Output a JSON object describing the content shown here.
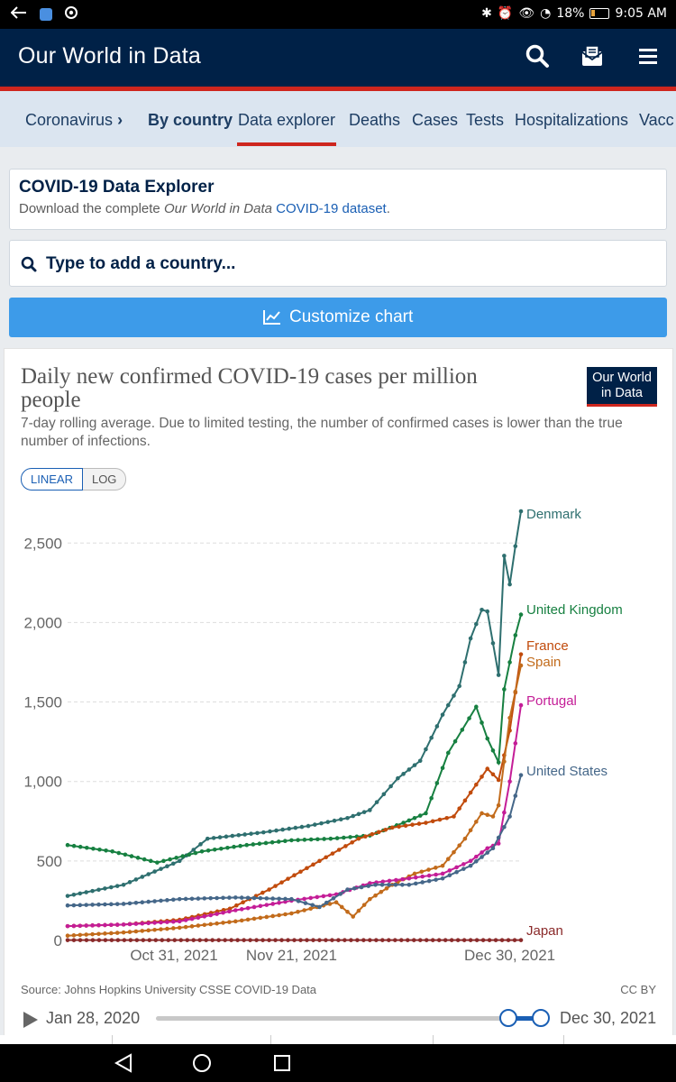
{
  "status_bar": {
    "battery": "18%",
    "time": "9:05 AM"
  },
  "header": {
    "title": "Our World in Data"
  },
  "nav": {
    "root": "Coronavirus",
    "tabs": [
      {
        "label": "By country",
        "active": false
      },
      {
        "label": "Data explorer",
        "active": true
      },
      {
        "label": "Deaths"
      },
      {
        "label": "Cases"
      },
      {
        "label": "Tests"
      },
      {
        "label": "Hospitalizations"
      },
      {
        "label": "Vacc"
      }
    ]
  },
  "explorer_card": {
    "title": "COVID-19 Data Explorer",
    "desc_prefix": "Download the complete ",
    "desc_em": "Our World in Data",
    "desc_link": "COVID-19 dataset",
    "desc_suffix": "."
  },
  "search": {
    "placeholder": "Type to add a country..."
  },
  "customize_button": {
    "label": "Customize chart"
  },
  "chart": {
    "title": "Daily new confirmed COVID-19 cases per million people",
    "subtitle": "7-day rolling average. Due to limited testing, the number of confirmed cases is lower than the true number of infections.",
    "logo_line1": "Our World",
    "logo_line2": "in Data",
    "scale_linear": "LINEAR",
    "scale_log": "LOG",
    "source": "Source: Johns Hopkins University CSSE COVID-19 Data",
    "license": "CC BY"
  },
  "timeline": {
    "start": "Jan 28, 2020",
    "end": "Dec 30, 2021"
  },
  "chart_data": {
    "type": "line",
    "x_start": "2021-10-12",
    "x_end": "2021-12-30",
    "x_ticks": [
      "Oct 31, 2021",
      "Nov 21, 2021",
      "Dec 30, 2021"
    ],
    "y_ticks": [
      "0",
      "500",
      "1,000",
      "1,500",
      "2,000",
      "2,500"
    ],
    "ylim": [
      0,
      2700
    ],
    "grid": true,
    "legend": "end-of-line labels",
    "series": [
      {
        "name": "Denmark",
        "color": "#2e6f6f",
        "points": [
          [
            "10-12",
            280
          ],
          [
            "10-22",
            350
          ],
          [
            "11-01",
            500
          ],
          [
            "11-06",
            640
          ],
          [
            "11-16",
            680
          ],
          [
            "11-24",
            720
          ],
          [
            "12-01",
            770
          ],
          [
            "12-05",
            820
          ],
          [
            "12-10",
            1020
          ],
          [
            "12-14",
            1130
          ],
          [
            "12-18",
            1420
          ],
          [
            "12-21",
            1600
          ],
          [
            "12-23",
            1900
          ],
          [
            "12-25",
            2080
          ],
          [
            "12-26",
            2070
          ],
          [
            "12-27",
            1870
          ],
          [
            "12-28",
            1670
          ],
          [
            "12-29",
            2420
          ],
          [
            "12-30",
            2240
          ],
          [
            "12-31",
            2480
          ],
          [
            "01-01",
            2700
          ]
        ]
      },
      {
        "name": "United Kingdom",
        "color": "#178041",
        "points": [
          [
            "10-12",
            600
          ],
          [
            "10-20",
            560
          ],
          [
            "10-28",
            490
          ],
          [
            "11-05",
            560
          ],
          [
            "11-13",
            600
          ],
          [
            "11-21",
            630
          ],
          [
            "11-28",
            640
          ],
          [
            "12-05",
            660
          ],
          [
            "12-11",
            740
          ],
          [
            "12-15",
            800
          ],
          [
            "12-19",
            1180
          ],
          [
            "12-24",
            1470
          ],
          [
            "12-26",
            1270
          ],
          [
            "12-28",
            1120
          ],
          [
            "12-29",
            1580
          ],
          [
            "12-31",
            1920
          ],
          [
            "01-01",
            2050
          ]
        ]
      },
      {
        "name": "France",
        "color": "#c14b0c",
        "points": [
          [
            "10-12",
            90
          ],
          [
            "10-22",
            100
          ],
          [
            "11-01",
            130
          ],
          [
            "11-10",
            200
          ],
          [
            "11-17",
            320
          ],
          [
            "11-26",
            500
          ],
          [
            "12-03",
            640
          ],
          [
            "12-09",
            710
          ],
          [
            "12-15",
            740
          ],
          [
            "12-20",
            780
          ],
          [
            "12-24",
            980
          ],
          [
            "12-26",
            1080
          ],
          [
            "12-28",
            1010
          ],
          [
            "12-30",
            1320
          ],
          [
            "01-01",
            1800
          ]
        ]
      },
      {
        "name": "Spain",
        "color": "#c26b1b",
        "points": [
          [
            "10-12",
            30
          ],
          [
            "10-22",
            50
          ],
          [
            "11-01",
            80
          ],
          [
            "11-11",
            120
          ],
          [
            "11-21",
            170
          ],
          [
            "11-29",
            240
          ],
          [
            "12-02",
            150
          ],
          [
            "12-05",
            260
          ],
          [
            "12-09",
            350
          ],
          [
            "12-13",
            420
          ],
          [
            "12-18",
            470
          ],
          [
            "12-22",
            640
          ],
          [
            "12-25",
            800
          ],
          [
            "12-27",
            780
          ],
          [
            "12-28",
            850
          ],
          [
            "12-30",
            1400
          ],
          [
            "01-01",
            1730
          ]
        ]
      },
      {
        "name": "Portugal",
        "color": "#c41d97",
        "points": [
          [
            "10-12",
            90
          ],
          [
            "10-22",
            100
          ],
          [
            "11-01",
            120
          ],
          [
            "11-11",
            190
          ],
          [
            "11-21",
            250
          ],
          [
            "11-29",
            290
          ],
          [
            "12-05",
            360
          ],
          [
            "12-12",
            390
          ],
          [
            "12-18",
            420
          ],
          [
            "12-23",
            500
          ],
          [
            "12-26",
            580
          ],
          [
            "12-28",
            610
          ],
          [
            "12-30",
            1000
          ],
          [
            "01-01",
            1480
          ]
        ]
      },
      {
        "name": "United States",
        "color": "#456789",
        "points": [
          [
            "10-12",
            220
          ],
          [
            "10-22",
            230
          ],
          [
            "11-01",
            260
          ],
          [
            "11-11",
            270
          ],
          [
            "11-21",
            260
          ],
          [
            "11-26",
            210
          ],
          [
            "11-31",
            320
          ],
          [
            "12-06",
            350
          ],
          [
            "12-12",
            350
          ],
          [
            "12-18",
            390
          ],
          [
            "12-23",
            470
          ],
          [
            "12-27",
            580
          ],
          [
            "12-30",
            780
          ],
          [
            "01-01",
            1040
          ]
        ]
      },
      {
        "name": "Japan",
        "color": "#8a2a2a",
        "points": [
          [
            "10-12",
            2
          ],
          [
            "01-01",
            2
          ]
        ]
      }
    ]
  }
}
